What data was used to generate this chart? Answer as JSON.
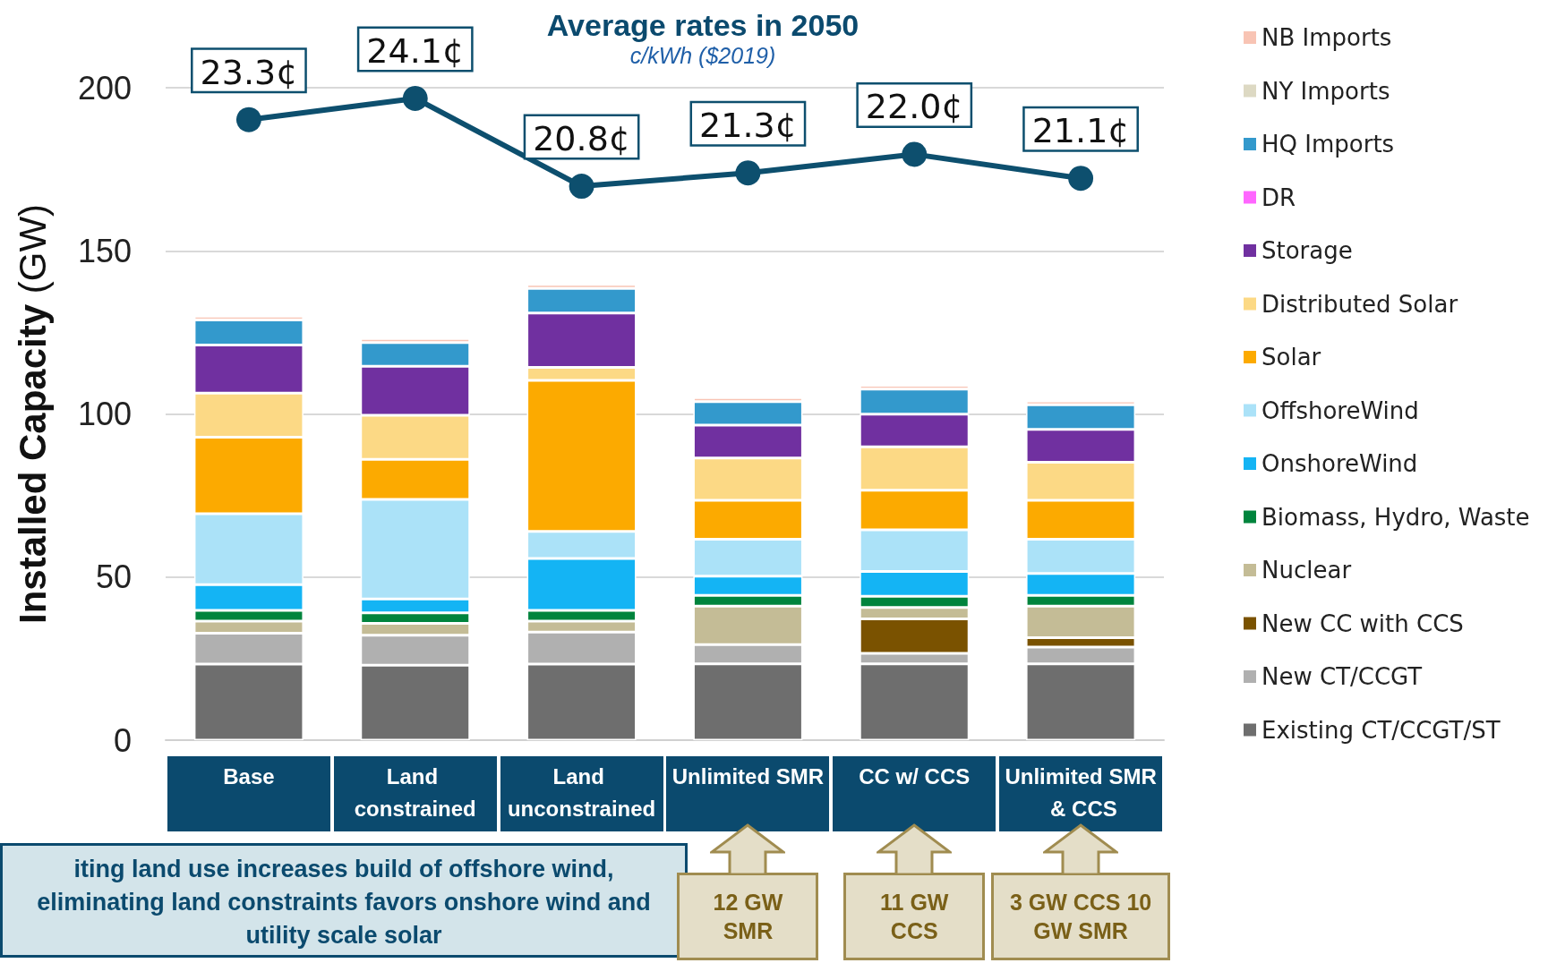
{
  "chart_data": {
    "type": "bar",
    "title": "Average rates in 2050",
    "subtitle": "c/kWh ($2019)",
    "ylabel": "Installed Capacity (GW)",
    "categories": [
      "Base",
      "Land constrained",
      "Land unconstrained",
      "Unlimited SMR",
      "CC w/ CCS",
      "Unlimited SMR & CCS"
    ],
    "stacked": true,
    "grid": "y",
    "legend": "right",
    "ylim": [
      0,
      200
    ],
    "yticks": [
      0,
      50,
      100,
      150,
      200
    ],
    "y2lim": [
      0,
      24.5
    ],
    "series": [
      {
        "name": "Existing CT/CCGT/ST",
        "color": "#6e6e6e",
        "values": [
          23.3,
          23.0,
          23.3,
          23.4,
          23.4,
          23.4
        ]
      },
      {
        "name": "New CT/CCGT",
        "color": "#b0b0b0",
        "values": [
          9.5,
          9.2,
          9.8,
          5.9,
          3.2,
          5.1
        ]
      },
      {
        "name": "New CC with CCS",
        "color": "#7a5200",
        "values": [
          null,
          null,
          null,
          null,
          10.6,
          2.9
        ]
      },
      {
        "name": "Nuclear",
        "color": "#c4bc96",
        "values": [
          3.7,
          3.6,
          3.4,
          11.8,
          3.5,
          9.7
        ]
      },
      {
        "name": "Biomass, Hydro, Waste",
        "color": "#00843d",
        "values": [
          3.3,
          3.2,
          3.3,
          3.3,
          3.4,
          3.3
        ]
      },
      {
        "name": "OnshoreWind",
        "color": "#14b4f4",
        "values": [
          7.9,
          4.3,
          15.9,
          5.9,
          7.6,
          6.7
        ]
      },
      {
        "name": "OffshoreWind",
        "color": "#abe2f8",
        "values": [
          21.7,
          30.5,
          8.3,
          11.3,
          12.8,
          10.5
        ]
      },
      {
        "name": "Solar",
        "color": "#fcaa00",
        "values": [
          23.5,
          12.3,
          46.3,
          11.9,
          12.1,
          11.9
        ]
      },
      {
        "name": "Distributed Solar",
        "color": "#fcd985",
        "values": [
          13.5,
          13.5,
          4.0,
          13.0,
          13.3,
          11.7
        ]
      },
      {
        "name": "Storage",
        "color": "#7030a0",
        "values": [
          14.7,
          15.0,
          16.6,
          10.1,
          10.0,
          10.1
        ]
      },
      {
        "name": "DR",
        "color": "#ff66ff",
        "values": [
          null,
          null,
          null,
          null,
          null,
          null
        ]
      },
      {
        "name": "HQ Imports",
        "color": "#3399cc",
        "values": [
          7.7,
          7.3,
          7.6,
          7.2,
          7.7,
          7.5
        ]
      },
      {
        "name": "NY Imports",
        "color": "#ddd9c3",
        "values": [
          null,
          null,
          null,
          null,
          null,
          null
        ]
      },
      {
        "name": "NB Imports",
        "color": "#f8c4b4",
        "values": [
          1.2,
          1.2,
          1.2,
          1.2,
          1.2,
          1.2
        ]
      },
      {
        "type": "line",
        "axis": "y2",
        "color": "#0d4f6e",
        "marker": "circle",
        "values": [
          23.3,
          24.1,
          20.8,
          21.3,
          22.0,
          21.1
        ],
        "value_labels": [
          "23.3¢",
          "24.1¢",
          "20.8¢",
          "21.3¢",
          "22.0¢",
          "21.1¢"
        ]
      }
    ],
    "annotations": [
      "iting land use increases build of offshore wind, eliminating land constraints favors onshore wind and utility scale solar",
      "12 GW SMR",
      "11 GW CCS",
      "3 GW CCS 10 GW SMR"
    ]
  }
}
